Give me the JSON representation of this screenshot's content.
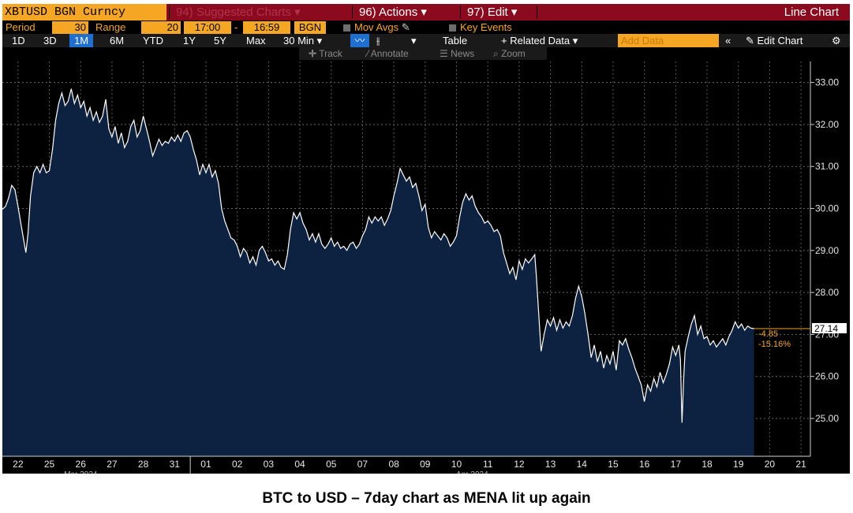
{
  "toolbar": {
    "ticker": "XBTUSD BGN Curncy",
    "suggested": "94) Suggested Charts ▾",
    "actions": "96) Actions ▾",
    "edit": "97) Edit ▾",
    "chart_type": "Line Chart"
  },
  "settings": {
    "period_label": "Period",
    "period_value": "30",
    "range_label": "Range",
    "range_value": "20",
    "start_time": "17:00",
    "dash": "-",
    "end_time": "16:59",
    "source": "BGN",
    "mov_avgs": "Mov Avgs",
    "key_events": "Key Events"
  },
  "ranges": {
    "items": [
      "1D",
      "3D",
      "1M",
      "6M",
      "YTD",
      "1Y",
      "5Y",
      "Max"
    ],
    "selected": "1M",
    "interval": "30 Min ▾",
    "table": "Table",
    "related": "+ Related Data ▾",
    "add_data_placeholder": "Add Data",
    "collapse": "«",
    "edit_chart": "✎ Edit Chart",
    "settings_icon": "⚙"
  },
  "tools": {
    "track": "Track",
    "annotate": "Annotate",
    "news": "News",
    "zoom": "Zoom"
  },
  "caption": "BTC to USD – 7day chart as MENA lit up again",
  "colors": {
    "area_fill": "#0d2240",
    "line": "#ffffff",
    "accent": "#f5a623",
    "header_bar": "#8b0a1e"
  },
  "chart_data": {
    "type": "area",
    "title": "",
    "xlabel": "",
    "ylabel": "",
    "ylim": [
      24.1,
      33.5
    ],
    "yticks": [
      25.0,
      26.0,
      27.0,
      28.0,
      29.0,
      30.0,
      31.0,
      32.0,
      33.0
    ],
    "yticklabels": [
      "25.00",
      "26.00",
      "27.00",
      "28.00",
      "29.00",
      "30.00",
      "31.00",
      "32.00",
      "33.00"
    ],
    "x_day_labels": [
      "22",
      "25",
      "26",
      "27",
      "28",
      "31",
      "01",
      "02",
      "03",
      "04",
      "05",
      "07",
      "08",
      "09",
      "10",
      "11",
      "12",
      "13",
      "14",
      "15",
      "16",
      "17",
      "18",
      "19",
      "20",
      "21"
    ],
    "month_labels": [
      {
        "label": "Mar 2024",
        "at_day_index": 2
      },
      {
        "label": "Apr 2024",
        "at_day_index": 14.5
      }
    ],
    "month_divider_at_day_index": 5.5,
    "day_index_range": [
      -0.5,
      25.3
    ],
    "series": [
      {
        "points": [
          [
            -0.5,
            29.98
          ],
          [
            -0.4,
            30.05
          ],
          [
            -0.3,
            30.25
          ],
          [
            -0.2,
            30.55
          ],
          [
            -0.1,
            30.45
          ],
          [
            0.0,
            30.05
          ],
          [
            0.1,
            29.6
          ],
          [
            0.18,
            29.25
          ],
          [
            0.25,
            28.95
          ],
          [
            0.32,
            29.4
          ],
          [
            0.4,
            30.3
          ],
          [
            0.5,
            30.85
          ],
          [
            0.6,
            31.0
          ],
          [
            0.7,
            30.85
          ],
          [
            0.8,
            31.05
          ],
          [
            0.9,
            30.85
          ],
          [
            1.0,
            30.9
          ],
          [
            1.1,
            31.4
          ],
          [
            1.2,
            32.1
          ],
          [
            1.3,
            32.5
          ],
          [
            1.4,
            32.75
          ],
          [
            1.5,
            32.45
          ],
          [
            1.6,
            32.55
          ],
          [
            1.7,
            32.85
          ],
          [
            1.8,
            32.5
          ],
          [
            1.9,
            32.7
          ],
          [
            2.0,
            32.4
          ],
          [
            2.1,
            32.55
          ],
          [
            2.2,
            32.2
          ],
          [
            2.3,
            32.4
          ],
          [
            2.4,
            32.1
          ],
          [
            2.5,
            32.3
          ],
          [
            2.6,
            32.05
          ],
          [
            2.7,
            32.2
          ],
          [
            2.8,
            32.6
          ],
          [
            2.9,
            31.9
          ],
          [
            3.0,
            31.7
          ],
          [
            3.1,
            31.95
          ],
          [
            3.2,
            31.55
          ],
          [
            3.3,
            31.8
          ],
          [
            3.4,
            31.45
          ],
          [
            3.5,
            31.6
          ],
          [
            3.6,
            31.95
          ],
          [
            3.7,
            32.1
          ],
          [
            3.8,
            31.7
          ],
          [
            3.9,
            31.85
          ],
          [
            4.0,
            32.2
          ],
          [
            4.1,
            31.9
          ],
          [
            4.2,
            31.6
          ],
          [
            4.3,
            31.25
          ],
          [
            4.4,
            31.45
          ],
          [
            4.5,
            31.65
          ],
          [
            4.6,
            31.5
          ],
          [
            4.7,
            31.6
          ],
          [
            4.8,
            31.55
          ],
          [
            4.9,
            31.7
          ],
          [
            5.0,
            31.6
          ],
          [
            5.1,
            31.75
          ],
          [
            5.2,
            31.6
          ],
          [
            5.3,
            31.8
          ],
          [
            5.4,
            31.85
          ],
          [
            5.5,
            31.7
          ],
          [
            5.6,
            31.4
          ],
          [
            5.7,
            31.15
          ],
          [
            5.8,
            30.8
          ],
          [
            5.9,
            31.05
          ],
          [
            6.0,
            30.85
          ],
          [
            6.1,
            31.05
          ],
          [
            6.2,
            30.75
          ],
          [
            6.3,
            30.9
          ],
          [
            6.4,
            30.6
          ],
          [
            6.5,
            30.0
          ],
          [
            6.6,
            29.7
          ],
          [
            6.7,
            29.5
          ],
          [
            6.8,
            29.3
          ],
          [
            6.9,
            29.25
          ],
          [
            7.0,
            29.1
          ],
          [
            7.1,
            28.85
          ],
          [
            7.2,
            29.05
          ],
          [
            7.3,
            28.95
          ],
          [
            7.4,
            28.7
          ],
          [
            7.5,
            28.85
          ],
          [
            7.6,
            28.65
          ],
          [
            7.7,
            29.0
          ],
          [
            7.8,
            29.1
          ],
          [
            7.9,
            28.95
          ],
          [
            8.0,
            28.75
          ],
          [
            8.1,
            28.8
          ],
          [
            8.2,
            28.65
          ],
          [
            8.3,
            28.75
          ],
          [
            8.4,
            28.6
          ],
          [
            8.5,
            28.55
          ],
          [
            8.6,
            28.9
          ],
          [
            8.7,
            29.5
          ],
          [
            8.8,
            29.9
          ],
          [
            8.9,
            29.75
          ],
          [
            9.0,
            29.9
          ],
          [
            9.1,
            29.65
          ],
          [
            9.2,
            29.5
          ],
          [
            9.3,
            29.25
          ],
          [
            9.4,
            29.4
          ],
          [
            9.5,
            29.2
          ],
          [
            9.6,
            29.4
          ],
          [
            9.7,
            29.15
          ],
          [
            9.8,
            29.05
          ],
          [
            9.9,
            29.15
          ],
          [
            10.0,
            29.3
          ],
          [
            10.1,
            29.1
          ],
          [
            10.2,
            29.2
          ],
          [
            10.3,
            29.05
          ],
          [
            10.4,
            29.1
          ],
          [
            10.5,
            29.0
          ],
          [
            10.6,
            29.15
          ],
          [
            10.7,
            29.2
          ],
          [
            10.8,
            29.05
          ],
          [
            10.9,
            29.15
          ],
          [
            11.0,
            29.35
          ],
          [
            11.1,
            29.5
          ],
          [
            11.2,
            29.8
          ],
          [
            11.3,
            29.65
          ],
          [
            11.4,
            29.8
          ],
          [
            11.5,
            29.7
          ],
          [
            11.6,
            29.8
          ],
          [
            11.7,
            29.6
          ],
          [
            11.8,
            29.75
          ],
          [
            11.9,
            29.95
          ],
          [
            12.0,
            30.3
          ],
          [
            12.1,
            30.6
          ],
          [
            12.2,
            30.95
          ],
          [
            12.3,
            30.8
          ],
          [
            12.4,
            30.65
          ],
          [
            12.5,
            30.75
          ],
          [
            12.6,
            30.5
          ],
          [
            12.7,
            30.6
          ],
          [
            12.8,
            30.3
          ],
          [
            12.9,
            29.95
          ],
          [
            13.0,
            30.1
          ],
          [
            13.1,
            29.55
          ],
          [
            13.2,
            29.3
          ],
          [
            13.3,
            29.45
          ],
          [
            13.4,
            29.35
          ],
          [
            13.5,
            29.25
          ],
          [
            13.6,
            29.4
          ],
          [
            13.7,
            29.3
          ],
          [
            13.8,
            29.1
          ],
          [
            13.9,
            29.2
          ],
          [
            14.0,
            29.35
          ],
          [
            14.1,
            29.8
          ],
          [
            14.2,
            30.15
          ],
          [
            14.3,
            30.35
          ],
          [
            14.4,
            30.2
          ],
          [
            14.5,
            30.3
          ],
          [
            14.6,
            30.05
          ],
          [
            14.7,
            29.9
          ],
          [
            14.8,
            29.8
          ],
          [
            14.9,
            29.65
          ],
          [
            15.0,
            29.7
          ],
          [
            15.1,
            29.6
          ],
          [
            15.2,
            29.45
          ],
          [
            15.3,
            29.5
          ],
          [
            15.4,
            29.35
          ],
          [
            15.5,
            28.95
          ],
          [
            15.6,
            28.7
          ],
          [
            15.7,
            28.45
          ],
          [
            15.8,
            28.6
          ],
          [
            15.9,
            28.3
          ],
          [
            16.0,
            28.75
          ],
          [
            16.1,
            28.55
          ],
          [
            16.2,
            28.8
          ],
          [
            16.3,
            28.7
          ],
          [
            16.4,
            28.8
          ],
          [
            16.5,
            28.9
          ],
          [
            16.55,
            28.4
          ],
          [
            16.6,
            27.8
          ],
          [
            16.7,
            26.6
          ],
          [
            16.8,
            27.0
          ],
          [
            16.9,
            27.35
          ],
          [
            17.0,
            27.2
          ],
          [
            17.1,
            27.4
          ],
          [
            17.2,
            27.1
          ],
          [
            17.3,
            27.35
          ],
          [
            17.4,
            27.15
          ],
          [
            17.5,
            27.3
          ],
          [
            17.6,
            27.2
          ],
          [
            17.7,
            27.45
          ],
          [
            17.8,
            27.85
          ],
          [
            17.9,
            28.15
          ],
          [
            18.0,
            27.9
          ],
          [
            18.1,
            27.5
          ],
          [
            18.2,
            27.0
          ],
          [
            18.3,
            26.45
          ],
          [
            18.4,
            26.75
          ],
          [
            18.5,
            26.35
          ],
          [
            18.6,
            26.6
          ],
          [
            18.7,
            26.2
          ],
          [
            18.8,
            26.5
          ],
          [
            18.9,
            26.3
          ],
          [
            19.0,
            26.6
          ],
          [
            19.1,
            26.15
          ],
          [
            19.2,
            26.85
          ],
          [
            19.3,
            26.75
          ],
          [
            19.4,
            26.9
          ],
          [
            19.5,
            26.65
          ],
          [
            19.6,
            26.45
          ],
          [
            19.7,
            26.2
          ],
          [
            19.8,
            26.0
          ],
          [
            19.9,
            25.8
          ],
          [
            20.0,
            25.4
          ],
          [
            20.1,
            25.8
          ],
          [
            20.2,
            25.65
          ],
          [
            20.3,
            25.95
          ],
          [
            20.4,
            25.75
          ],
          [
            20.5,
            26.1
          ],
          [
            20.6,
            25.85
          ],
          [
            20.7,
            26.05
          ],
          [
            20.8,
            26.3
          ],
          [
            20.9,
            26.7
          ],
          [
            21.0,
            26.5
          ],
          [
            21.1,
            26.75
          ],
          [
            21.15,
            26.4
          ],
          [
            21.2,
            24.9
          ],
          [
            21.25,
            25.9
          ],
          [
            21.3,
            26.6
          ],
          [
            21.4,
            26.95
          ],
          [
            21.5,
            27.25
          ],
          [
            21.6,
            27.45
          ],
          [
            21.7,
            27.0
          ],
          [
            21.8,
            27.2
          ],
          [
            21.9,
            26.9
          ],
          [
            22.0,
            26.95
          ],
          [
            22.1,
            26.75
          ],
          [
            22.2,
            26.85
          ],
          [
            22.3,
            26.7
          ],
          [
            22.4,
            26.8
          ],
          [
            22.5,
            26.9
          ],
          [
            22.6,
            26.75
          ],
          [
            22.7,
            26.95
          ],
          [
            22.8,
            27.1
          ],
          [
            22.9,
            27.3
          ],
          [
            23.0,
            27.15
          ],
          [
            23.1,
            27.25
          ],
          [
            23.2,
            27.1
          ],
          [
            23.3,
            27.2
          ],
          [
            23.4,
            27.15
          ],
          [
            23.5,
            27.14
          ]
        ]
      }
    ],
    "last_value": "27.14",
    "last_value_y": 27.14,
    "change_abs": "-4.85",
    "change_pct": "-15.16%"
  }
}
